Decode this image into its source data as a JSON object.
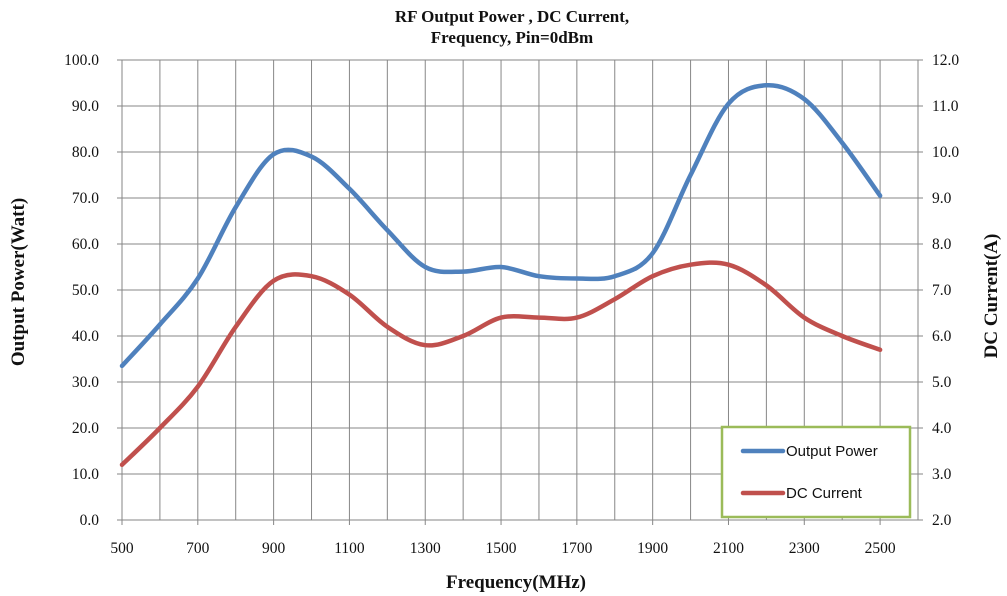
{
  "chart_data": {
    "type": "line",
    "title_lines": [
      "RF Output Power , DC Current,",
      "Frequency, Pin=0dBm"
    ],
    "xlabel": "Frequency(MHz)",
    "ylabel": "Output Power(Watt)",
    "y2label": "DC Current(A)",
    "xlim": [
      500,
      2600
    ],
    "ylim": [
      0,
      100
    ],
    "y2lim": [
      2,
      12
    ],
    "x_ticks": [
      "500",
      "700",
      "900",
      "1100",
      "1300",
      "1500",
      "1700",
      "1900",
      "2100",
      "2300",
      "2500"
    ],
    "y_ticks": [
      "0.0",
      "10.0",
      "20.0",
      "30.0",
      "40.0",
      "50.0",
      "60.0",
      "70.0",
      "80.0",
      "90.0",
      "100.0"
    ],
    "y2_ticks": [
      "2.0",
      "3.0",
      "4.0",
      "5.0",
      "6.0",
      "7.0",
      "8.0",
      "9.0",
      "10.0",
      "11.0",
      "12.0"
    ],
    "grid": true,
    "legend_position": "bottom-right",
    "series": [
      {
        "name": "Output Power",
        "axis": "left",
        "color": "#4f81bd",
        "x": [
          500,
          600,
          700,
          800,
          900,
          1000,
          1100,
          1200,
          1300,
          1400,
          1500,
          1600,
          1700,
          1800,
          1900,
          2000,
          2100,
          2200,
          2300,
          2400,
          2500
        ],
        "y": [
          33.5,
          42.5,
          52.5,
          68.0,
          79.5,
          79.0,
          72.0,
          63.0,
          55.0,
          54.0,
          55.0,
          53.0,
          52.5,
          53.0,
          58.0,
          75.0,
          90.5,
          94.5,
          91.5,
          82.0,
          70.5
        ]
      },
      {
        "name": "DC Current",
        "axis": "right",
        "color": "#c0504d",
        "x": [
          500,
          600,
          700,
          800,
          900,
          1000,
          1100,
          1200,
          1300,
          1400,
          1500,
          1600,
          1700,
          1800,
          1900,
          2000,
          2100,
          2200,
          2300,
          2400,
          2500
        ],
        "y": [
          3.2,
          4.0,
          4.9,
          6.2,
          7.2,
          7.3,
          6.9,
          6.2,
          5.8,
          6.0,
          6.4,
          6.4,
          6.4,
          6.8,
          7.3,
          7.55,
          7.55,
          7.1,
          6.4,
          6.0,
          5.7
        ]
      }
    ]
  }
}
